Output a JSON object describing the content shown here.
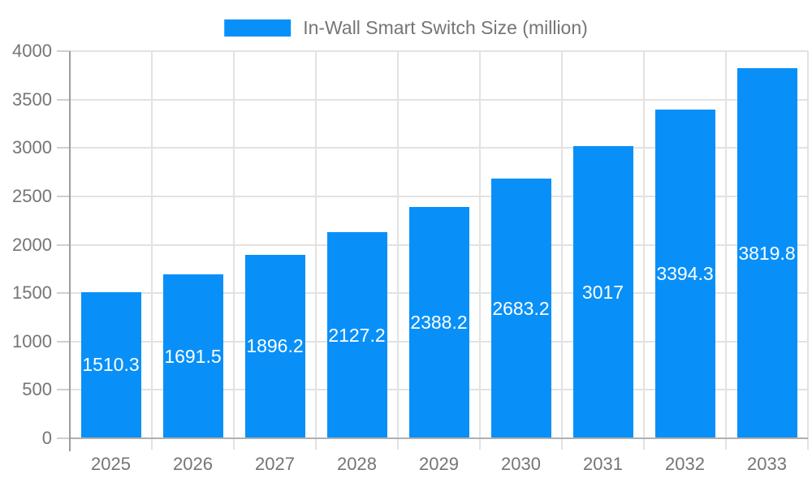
{
  "legend": {
    "label": "In-Wall Smart Switch Size (million)"
  },
  "colors": {
    "bar": "#0990f8",
    "grid": "#e2e2e2",
    "baseline": "#b0b0b0",
    "tick": "#cfcfcf",
    "axis_line": "#9e9e9e",
    "axis_text": "#757575",
    "bar_label_text": "#ffffff",
    "background": "#ffffff"
  },
  "chart_data": {
    "type": "bar",
    "title": "In-Wall Smart Switch Size (million)",
    "categories": [
      "2025",
      "2026",
      "2027",
      "2028",
      "2029",
      "2030",
      "2031",
      "2032",
      "2033"
    ],
    "values": [
      1510.3,
      1691.5,
      1896.2,
      2127.2,
      2388.2,
      2683.2,
      3017,
      3394.3,
      3819.8
    ],
    "series": [
      {
        "name": "In-Wall Smart Switch Size (million)",
        "values": [
          1510.3,
          1691.5,
          1896.2,
          2127.2,
          2388.2,
          2683.2,
          3017,
          3394.3,
          3819.8
        ]
      }
    ],
    "xlabel": "",
    "ylabel": "",
    "ylim": [
      0,
      4000
    ],
    "ytick_step": 500,
    "grid": true,
    "legend_position": "top",
    "data_labels_position": "inside-center"
  }
}
